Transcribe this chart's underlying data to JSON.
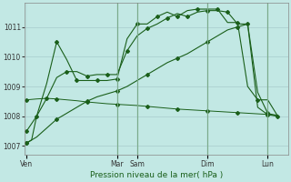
{
  "xlabel": "Pression niveau de la mer( hPa )",
  "bg_color": "#c2e8e4",
  "grid_color": "#a8cccc",
  "line_color": "#1a5f1a",
  "ylim": [
    1006.7,
    1011.8
  ],
  "yticks": [
    1007,
    1008,
    1009,
    1010,
    1011
  ],
  "x_ticks_labels": [
    "Ven",
    "Mar",
    "Sam",
    "Dim",
    "Lun"
  ],
  "x_ticks_pos": [
    0,
    9,
    11,
    18,
    24
  ],
  "xlim": [
    -0.2,
    26
  ],
  "vlines": [
    9,
    11,
    18,
    24
  ],
  "line1_x": [
    0,
    0.5,
    1,
    2,
    3,
    4,
    5,
    6,
    7,
    8,
    9,
    10,
    11,
    12,
    13,
    14,
    15,
    16,
    17,
    18,
    19,
    20,
    21,
    22,
    23,
    24,
    25
  ],
  "line1_y": [
    1007.1,
    1007.2,
    1008.0,
    1009.1,
    1010.5,
    1009.9,
    1009.2,
    1009.2,
    1009.2,
    1009.2,
    1009.25,
    1010.6,
    1011.1,
    1011.1,
    1011.35,
    1011.5,
    1011.35,
    1011.55,
    1011.6,
    1011.6,
    1011.6,
    1011.15,
    1011.15,
    1009.0,
    1008.55,
    1008.55,
    1008.0
  ],
  "line2_x": [
    0,
    1,
    2,
    3,
    4,
    5,
    6,
    7,
    8,
    9,
    10,
    11,
    12,
    13,
    14,
    15,
    16,
    17,
    18,
    19,
    20,
    21,
    22,
    23,
    24,
    25
  ],
  "line2_y": [
    1007.5,
    1008.0,
    1008.6,
    1009.3,
    1009.5,
    1009.5,
    1009.35,
    1009.4,
    1009.4,
    1009.4,
    1010.2,
    1010.7,
    1010.95,
    1011.1,
    1011.3,
    1011.45,
    1011.35,
    1011.5,
    1011.55,
    1011.55,
    1011.5,
    1011.1,
    1011.1,
    1008.8,
    1008.1,
    1008.0
  ],
  "line3_x": [
    0,
    1,
    2,
    3,
    4,
    5,
    6,
    7,
    8,
    9,
    10,
    11,
    12,
    13,
    14,
    15,
    16,
    17,
    18,
    19,
    20,
    21,
    22,
    23,
    24,
    25
  ],
  "line3_y": [
    1008.55,
    1008.58,
    1008.6,
    1008.58,
    1008.55,
    1008.52,
    1008.48,
    1008.45,
    1008.42,
    1008.4,
    1008.38,
    1008.36,
    1008.33,
    1008.3,
    1008.27,
    1008.24,
    1008.22,
    1008.2,
    1008.18,
    1008.16,
    1008.14,
    1008.12,
    1008.1,
    1008.08,
    1008.06,
    1008.04
  ],
  "line4_x": [
    0,
    1,
    2,
    3,
    4,
    5,
    6,
    7,
    8,
    9,
    10,
    11,
    12,
    13,
    14,
    15,
    16,
    17,
    18,
    19,
    20,
    21,
    22,
    23,
    24,
    25
  ],
  "line4_y": [
    1007.1,
    1007.3,
    1007.6,
    1007.9,
    1008.1,
    1008.3,
    1008.5,
    1008.65,
    1008.75,
    1008.85,
    1009.0,
    1009.2,
    1009.4,
    1009.6,
    1009.8,
    1009.95,
    1010.1,
    1010.3,
    1010.5,
    1010.7,
    1010.9,
    1011.0,
    1011.1,
    1008.3,
    1008.05,
    1008.0
  ]
}
